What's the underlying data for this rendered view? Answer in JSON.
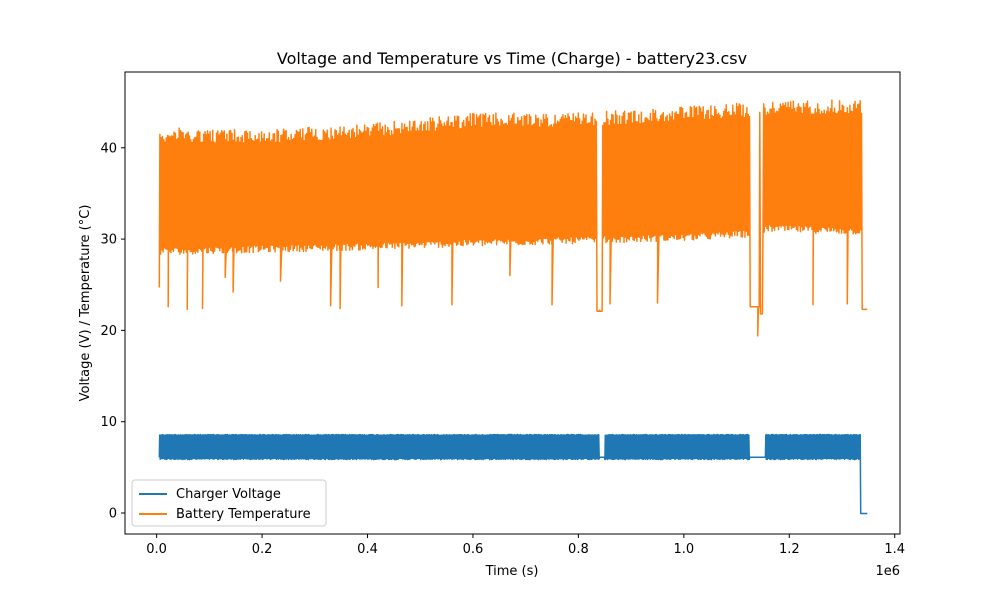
{
  "chart_data": {
    "type": "line",
    "title": "Voltage and Temperature vs Time (Charge) - battery23.csv",
    "xlabel": "Time (s)",
    "ylabel": "Voltage (V) / Temperature (°C)",
    "x_offset_label": "1e6",
    "xlim": [
      -60000,
      1410000
    ],
    "ylim": [
      -2.3,
      48.3
    ],
    "x_ticks": [
      0,
      200000,
      400000,
      600000,
      800000,
      1000000,
      1200000,
      1400000
    ],
    "x_tick_labels": [
      "0.0",
      "0.2",
      "0.4",
      "0.6",
      "0.8",
      "1.0",
      "1.2",
      "1.4"
    ],
    "y_ticks": [
      0,
      10,
      20,
      30,
      40
    ],
    "y_tick_labels": [
      "0",
      "10",
      "20",
      "30",
      "40"
    ],
    "grid": false,
    "legend_position": "lower-left",
    "x_extent": [
      5000,
      1348000
    ],
    "series": [
      {
        "name": "Charger Voltage",
        "color": "#1f77b4",
        "style": "oscillating",
        "start_value": 6.1,
        "low": 5.85,
        "high": 8.6,
        "end_value": -0.05,
        "flat_segments": [
          {
            "x": [
              840000,
              850000
            ],
            "value": 6.1
          },
          {
            "x": [
              1125000,
              1155000
            ],
            "value": 6.1
          },
          {
            "x": [
              1335000,
              1348000
            ],
            "value": -0.05
          }
        ]
      },
      {
        "name": "Battery Temperature",
        "color": "#ff7f0e",
        "style": "oscillating",
        "start_value": 24.7,
        "low_trend": [
          [
            10000,
            28.3
          ],
          [
            400000,
            28.8
          ],
          [
            600000,
            29.2
          ],
          [
            1000000,
            29.8
          ],
          [
            1120000,
            30.2
          ],
          [
            1160000,
            30.8
          ],
          [
            1335000,
            30.5
          ]
        ],
        "high_trend": [
          [
            10000,
            42.2
          ],
          [
            200000,
            42.0
          ],
          [
            400000,
            42.6
          ],
          [
            600000,
            43.8
          ],
          [
            800000,
            43.8
          ],
          [
            1000000,
            44.5
          ],
          [
            1200000,
            45.2
          ],
          [
            1335000,
            45.3
          ]
        ],
        "dips": [
          [
            22000,
            22.6
          ],
          [
            58000,
            22.3
          ],
          [
            87000,
            22.4
          ],
          [
            130000,
            25.8
          ],
          [
            145000,
            24.2
          ],
          [
            235000,
            25.4
          ],
          [
            330000,
            22.7
          ],
          [
            348000,
            22.4
          ],
          [
            420000,
            24.7
          ],
          [
            465000,
            22.7
          ],
          [
            560000,
            22.8
          ],
          [
            670000,
            26.0
          ],
          [
            750000,
            22.8
          ],
          [
            840000,
            22.2
          ],
          [
            860000,
            22.9
          ],
          [
            950000,
            23.0
          ],
          [
            1140000,
            19.4
          ],
          [
            1245000,
            22.8
          ],
          [
            1310000,
            22.9
          ]
        ],
        "flat_segments": [
          {
            "x": [
              835000,
              845000
            ],
            "value": 22.1
          },
          {
            "x": [
              1125000,
              1143000
            ],
            "value": 22.6
          },
          {
            "x": [
              1145000,
              1150000
            ],
            "value": 21.8
          },
          {
            "x": [
              1338000,
              1348000
            ],
            "value": 22.3
          }
        ]
      }
    ]
  }
}
